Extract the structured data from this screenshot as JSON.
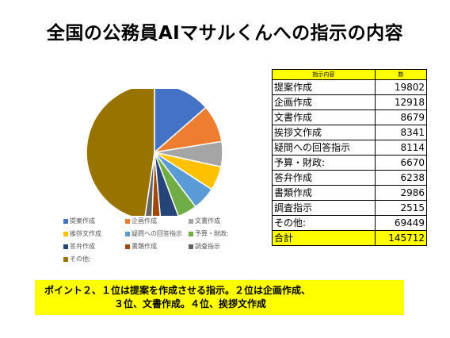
{
  "title": "全国の公務員AIマサルくんへの指示の内容",
  "table": {
    "header": [
      "指示内容",
      "数"
    ],
    "rows": [
      {
        "label": "提案作成",
        "value": "19802"
      },
      {
        "label": "企画作成",
        "value": "12918"
      },
      {
        "label": "文書作成",
        "value": "8679"
      },
      {
        "label": "挨拶文作成",
        "value": "8341"
      },
      {
        "label": "疑問への回答指示",
        "value": "8114"
      },
      {
        "label": "予算・財政:",
        "value": "6670"
      },
      {
        "label": "答弁作成",
        "value": "6238"
      },
      {
        "label": "書類作成",
        "value": "2986"
      },
      {
        "label": "調査指示",
        "value": "2515"
      },
      {
        "label": "その他:",
        "value": "69449"
      }
    ],
    "total": {
      "label": "合計",
      "value": "145712"
    }
  },
  "point": {
    "line1": "ポイント２、１位は提案を作成させる指示。２位は企画作成、",
    "line2": "３位、文書作成。４位、挨拶文作成"
  },
  "chart_data": {
    "type": "pie",
    "categories": [
      "提案作成",
      "企画作成",
      "文書作成",
      "挨拶文作成",
      "疑問への回答指示",
      "予算・財政:",
      "答弁作成",
      "書類作成",
      "調査指示",
      "その他:"
    ],
    "values": [
      19802,
      12918,
      8679,
      8341,
      8114,
      6670,
      6238,
      2986,
      2515,
      69449
    ],
    "colors": [
      "#4472c4",
      "#ed7d31",
      "#a5a5a5",
      "#ffc000",
      "#5b9bd5",
      "#70ad47",
      "#264478",
      "#9e480e",
      "#636363",
      "#997300"
    ],
    "legend_position": "bottom"
  }
}
